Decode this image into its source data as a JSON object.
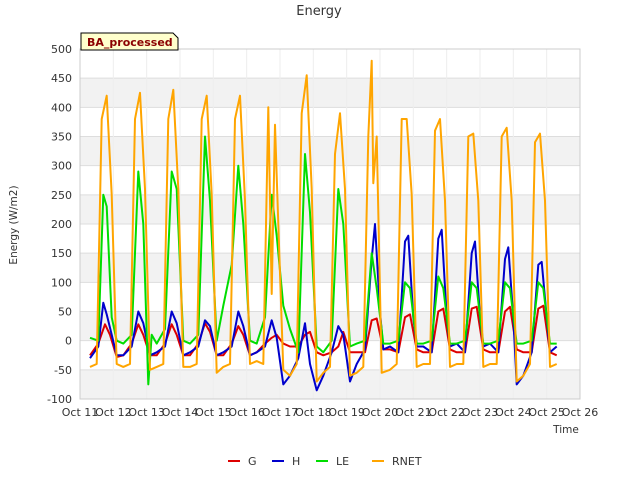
{
  "chart_data": {
    "type": "line",
    "title": "Energy",
    "badge": "BA_processed",
    "xlabel": "Time",
    "ylabel": "Energy (W/m2)",
    "xlim": [
      11,
      26
    ],
    "ylim": [
      -100,
      500
    ],
    "y_ticks": [
      -100,
      -50,
      0,
      50,
      100,
      150,
      200,
      250,
      300,
      350,
      400,
      450,
      500
    ],
    "x_ticks": [
      {
        "value": 11,
        "label": "Oct 11"
      },
      {
        "value": 12,
        "label": "Oct 12"
      },
      {
        "value": 13,
        "label": "Oct 13"
      },
      {
        "value": 14,
        "label": "Oct 14"
      },
      {
        "value": 15,
        "label": "Oct 15"
      },
      {
        "value": 16,
        "label": "Oct 16"
      },
      {
        "value": 17,
        "label": "Oct 17"
      },
      {
        "value": 18,
        "label": "Oct 18"
      },
      {
        "value": 19,
        "label": "Oct 19"
      },
      {
        "value": 20,
        "label": "Oct 20"
      },
      {
        "value": 21,
        "label": "Oct 21"
      },
      {
        "value": 22,
        "label": "Oct 22"
      },
      {
        "value": 23,
        "label": "Oct 23"
      },
      {
        "value": 24,
        "label": "Oct 24"
      },
      {
        "value": 25,
        "label": "Oct 25"
      },
      {
        "value": 26,
        "label": "Oct 26"
      }
    ],
    "grid": true,
    "legend_position": "bottom-center",
    "series": [
      {
        "name": "G",
        "color": "#dd0000",
        "x": [
          11.3,
          11.55,
          11.75,
          11.9,
          12.1,
          12.3,
          12.55,
          12.75,
          12.9,
          13.1,
          13.3,
          13.55,
          13.75,
          13.9,
          14.1,
          14.3,
          14.55,
          14.75,
          14.9,
          15.1,
          15.3,
          15.55,
          15.75,
          15.9,
          16.1,
          16.3,
          16.55,
          16.75,
          16.9,
          17.1,
          17.3,
          17.55,
          17.75,
          17.9,
          18.1,
          18.3,
          18.55,
          18.75,
          18.9,
          19.1,
          19.3,
          19.55,
          19.75,
          19.9,
          20.1,
          20.3,
          20.55,
          20.75,
          20.9,
          21.1,
          21.3,
          21.55,
          21.75,
          21.9,
          22.1,
          22.3,
          22.55,
          22.75,
          22.9,
          23.1,
          23.3,
          23.55,
          23.75,
          23.9,
          24.1,
          24.3,
          24.55,
          24.75,
          24.9,
          25.1,
          25.3
        ],
        "y": [
          -25,
          -5,
          28,
          10,
          -28,
          -25,
          -5,
          28,
          10,
          -25,
          -25,
          -5,
          28,
          10,
          -25,
          -25,
          -5,
          30,
          15,
          -25,
          -25,
          -5,
          25,
          10,
          -25,
          -20,
          -5,
          5,
          10,
          -5,
          -10,
          -10,
          10,
          15,
          -20,
          -25,
          -20,
          -10,
          15,
          -20,
          -20,
          -20,
          35,
          38,
          -15,
          -15,
          -20,
          40,
          45,
          -15,
          -20,
          -20,
          50,
          55,
          -15,
          -20,
          -20,
          55,
          58,
          -15,
          -20,
          -20,
          50,
          58,
          -15,
          -20,
          -20,
          55,
          60,
          -20,
          -25
        ]
      },
      {
        "name": "H",
        "color": "#0000cc",
        "x": [
          11.3,
          11.55,
          11.7,
          11.8,
          11.95,
          12.1,
          12.3,
          12.55,
          12.75,
          12.9,
          13.1,
          13.3,
          13.55,
          13.75,
          13.9,
          14.1,
          14.3,
          14.55,
          14.75,
          14.9,
          15.1,
          15.3,
          15.55,
          15.75,
          15.9,
          16.1,
          16.3,
          16.55,
          16.75,
          16.9,
          17.1,
          17.3,
          17.55,
          17.75,
          17.9,
          18.1,
          18.3,
          18.55,
          18.75,
          18.9,
          19.1,
          19.3,
          19.55,
          19.75,
          19.85,
          20.0,
          20.1,
          20.3,
          20.55,
          20.75,
          20.85,
          21.0,
          21.1,
          21.3,
          21.55,
          21.75,
          21.85,
          22.0,
          22.1,
          22.3,
          22.55,
          22.75,
          22.85,
          23.0,
          23.1,
          23.3,
          23.55,
          23.75,
          23.85,
          24.0,
          24.1,
          24.3,
          24.55,
          24.75,
          24.85,
          25.0,
          25.1,
          25.3
        ],
        "y": [
          -30,
          -10,
          65,
          45,
          10,
          -25,
          -25,
          -10,
          50,
          30,
          -25,
          -20,
          -10,
          50,
          30,
          -25,
          -20,
          -10,
          35,
          25,
          -25,
          -20,
          -10,
          50,
          25,
          -25,
          -20,
          -10,
          35,
          5,
          -75,
          -60,
          -30,
          30,
          -40,
          -85,
          -60,
          -20,
          25,
          10,
          -70,
          -40,
          -15,
          140,
          200,
          50,
          -15,
          -10,
          -20,
          170,
          180,
          40,
          -10,
          -10,
          -20,
          175,
          190,
          40,
          -10,
          -5,
          -20,
          150,
          170,
          40,
          -10,
          -5,
          -20,
          140,
          160,
          40,
          -75,
          -60,
          -20,
          130,
          135,
          40,
          -20,
          -10
        ]
      },
      {
        "name": "LE",
        "color": "#00dd00",
        "x": [
          11.3,
          11.55,
          11.7,
          11.8,
          11.95,
          12.1,
          12.3,
          12.55,
          12.75,
          12.9,
          13.05,
          13.15,
          13.3,
          13.55,
          13.75,
          13.9,
          14.1,
          14.3,
          14.55,
          14.75,
          14.9,
          15.1,
          15.3,
          15.55,
          15.75,
          15.9,
          16.1,
          16.3,
          16.55,
          16.75,
          16.9,
          17.1,
          17.3,
          17.55,
          17.75,
          17.9,
          18.1,
          18.3,
          18.55,
          18.75,
          18.9,
          19.1,
          19.3,
          19.55,
          19.75,
          19.9,
          20.1,
          20.3,
          20.55,
          20.75,
          20.9,
          21.1,
          21.3,
          21.55,
          21.75,
          21.9,
          22.1,
          22.3,
          22.55,
          22.75,
          22.9,
          23.1,
          23.3,
          23.55,
          23.75,
          23.9,
          24.1,
          24.3,
          24.55,
          24.75,
          24.9,
          25.1,
          25.3
        ],
        "y": [
          5,
          0,
          250,
          230,
          40,
          0,
          -5,
          10,
          290,
          200,
          -75,
          10,
          -5,
          20,
          290,
          260,
          0,
          -5,
          10,
          350,
          240,
          0,
          60,
          130,
          300,
          200,
          0,
          -5,
          40,
          250,
          180,
          60,
          20,
          -20,
          320,
          220,
          -10,
          -20,
          0,
          260,
          200,
          -10,
          -5,
          0,
          150,
          90,
          -5,
          -5,
          0,
          100,
          90,
          -5,
          -5,
          0,
          110,
          90,
          -5,
          -5,
          0,
          100,
          90,
          -5,
          -5,
          0,
          100,
          90,
          -5,
          -5,
          0,
          100,
          90,
          -5,
          -5
        ]
      },
      {
        "name": "RNET",
        "color": "#ffa500",
        "x": [
          11.3,
          11.5,
          11.65,
          11.8,
          11.95,
          12.1,
          12.3,
          12.5,
          12.65,
          12.8,
          12.95,
          13.1,
          13.3,
          13.5,
          13.65,
          13.8,
          13.95,
          14.1,
          14.3,
          14.5,
          14.65,
          14.8,
          14.95,
          15.1,
          15.3,
          15.5,
          15.65,
          15.8,
          15.95,
          16.1,
          16.3,
          16.5,
          16.65,
          16.75,
          16.85,
          16.95,
          17.1,
          17.3,
          17.5,
          17.65,
          17.8,
          17.95,
          18.1,
          18.3,
          18.5,
          18.65,
          18.8,
          18.95,
          19.1,
          19.3,
          19.5,
          19.65,
          19.75,
          19.8,
          19.9,
          20.05,
          20.3,
          20.5,
          20.65,
          20.8,
          20.95,
          21.1,
          21.3,
          21.5,
          21.65,
          21.8,
          21.95,
          22.1,
          22.3,
          22.5,
          22.65,
          22.8,
          22.95,
          23.1,
          23.3,
          23.5,
          23.65,
          23.8,
          23.95,
          24.1,
          24.3,
          24.5,
          24.65,
          24.8,
          24.95,
          25.1,
          25.3
        ],
        "y": [
          -45,
          -40,
          380,
          420,
          250,
          -40,
          -45,
          -40,
          380,
          425,
          260,
          -50,
          -45,
          -40,
          380,
          430,
          260,
          -45,
          -45,
          -40,
          380,
          420,
          250,
          -55,
          -45,
          -40,
          380,
          420,
          240,
          -40,
          -35,
          -40,
          400,
          80,
          370,
          200,
          -50,
          -60,
          -40,
          390,
          455,
          260,
          -70,
          -55,
          -45,
          320,
          390,
          260,
          -60,
          -55,
          -45,
          350,
          480,
          270,
          350,
          -55,
          -50,
          -40,
          380,
          380,
          250,
          -45,
          -40,
          -40,
          360,
          380,
          240,
          -45,
          -40,
          -40,
          350,
          355,
          240,
          -45,
          -40,
          -40,
          350,
          365,
          240,
          -70,
          -60,
          -40,
          340,
          355,
          240,
          -45,
          -40
        ]
      }
    ]
  }
}
